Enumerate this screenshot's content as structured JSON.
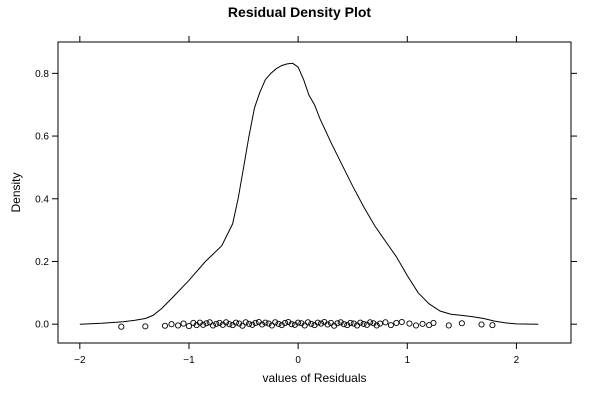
{
  "chart_data": {
    "type": "line",
    "title": "Residual Density Plot",
    "xlabel": "values of Residuals",
    "ylabel": "Density",
    "xlim": [
      -2.2,
      2.5
    ],
    "ylim": [
      -0.06,
      0.9
    ],
    "x_ticks": [
      -2,
      -1,
      0,
      1,
      2
    ],
    "x_tick_labels": [
      "−2",
      "−1",
      "0",
      "1",
      "2"
    ],
    "y_ticks": [
      0.0,
      0.2,
      0.4,
      0.6,
      0.8
    ],
    "y_tick_labels": [
      "0.0",
      "0.2",
      "0.4",
      "0.6",
      "0.8"
    ],
    "grid": false,
    "series": [
      {
        "kind": "density-curve",
        "x": [
          -2.0,
          -1.8,
          -1.6,
          -1.5,
          -1.4,
          -1.33,
          -1.25,
          -1.15,
          -1.0,
          -0.85,
          -0.7,
          -0.6,
          -0.55,
          -0.5,
          -0.45,
          -0.4,
          -0.35,
          -0.3,
          -0.25,
          -0.2,
          -0.15,
          -0.1,
          -0.05,
          0.0,
          0.05,
          0.1,
          0.15,
          0.2,
          0.3,
          0.4,
          0.5,
          0.6,
          0.7,
          0.8,
          0.9,
          1.0,
          1.1,
          1.2,
          1.3,
          1.4,
          1.5,
          1.6,
          1.7,
          1.8,
          1.9,
          2.0,
          2.2
        ],
        "y": [
          0.0,
          0.003,
          0.008,
          0.012,
          0.018,
          0.028,
          0.05,
          0.085,
          0.14,
          0.2,
          0.25,
          0.32,
          0.4,
          0.5,
          0.6,
          0.69,
          0.74,
          0.78,
          0.8,
          0.815,
          0.825,
          0.83,
          0.832,
          0.82,
          0.78,
          0.73,
          0.7,
          0.655,
          0.58,
          0.51,
          0.44,
          0.375,
          0.315,
          0.265,
          0.215,
          0.155,
          0.1,
          0.065,
          0.042,
          0.032,
          0.028,
          0.024,
          0.018,
          0.01,
          0.004,
          0.001,
          0.0
        ]
      },
      {
        "kind": "rug-points",
        "x": [
          -1.62,
          -1.4,
          -1.22,
          -1.16,
          -1.1,
          -1.05,
          -1.0,
          -0.96,
          -0.93,
          -0.9,
          -0.87,
          -0.84,
          -0.81,
          -0.78,
          -0.75,
          -0.72,
          -0.69,
          -0.66,
          -0.63,
          -0.6,
          -0.57,
          -0.54,
          -0.51,
          -0.48,
          -0.45,
          -0.42,
          -0.39,
          -0.36,
          -0.33,
          -0.3,
          -0.27,
          -0.24,
          -0.21,
          -0.18,
          -0.15,
          -0.12,
          -0.09,
          -0.06,
          -0.03,
          0.0,
          0.03,
          0.06,
          0.09,
          0.12,
          0.15,
          0.18,
          0.21,
          0.24,
          0.27,
          0.3,
          0.33,
          0.36,
          0.39,
          0.42,
          0.45,
          0.48,
          0.51,
          0.54,
          0.57,
          0.6,
          0.63,
          0.66,
          0.69,
          0.72,
          0.75,
          0.8,
          0.85,
          0.9,
          0.95,
          1.02,
          1.08,
          1.14,
          1.2,
          1.24,
          1.38,
          1.5,
          1.68,
          1.78
        ],
        "y": [
          -0.008,
          -0.007,
          -0.005,
          0.0,
          -0.004,
          0.002,
          -0.006,
          0.004,
          -0.003,
          0.005,
          -0.002,
          0.003,
          0.006,
          -0.004,
          0.001,
          0.004,
          -0.002,
          0.006,
          0.0,
          -0.003,
          0.005,
          0.002,
          -0.005,
          0.006,
          0.001,
          -0.002,
          0.004,
          0.007,
          -0.001,
          0.005,
          0.002,
          -0.004,
          0.006,
          0.001,
          -0.003,
          0.004,
          0.007,
          0.0,
          -0.002,
          0.005,
          0.003,
          -0.004,
          0.006,
          0.001,
          -0.003,
          0.005,
          0.002,
          0.007,
          -0.001,
          0.004,
          -0.005,
          0.003,
          0.006,
          0.0,
          -0.003,
          0.004,
          0.002,
          -0.004,
          0.005,
          0.001,
          -0.002,
          0.006,
          0.003,
          -0.004,
          0.002,
          0.006,
          -0.003,
          0.004,
          0.007,
          0.002,
          -0.004,
          0.001,
          -0.003,
          0.004,
          -0.004,
          0.003,
          -0.001,
          -0.003
        ]
      }
    ]
  }
}
